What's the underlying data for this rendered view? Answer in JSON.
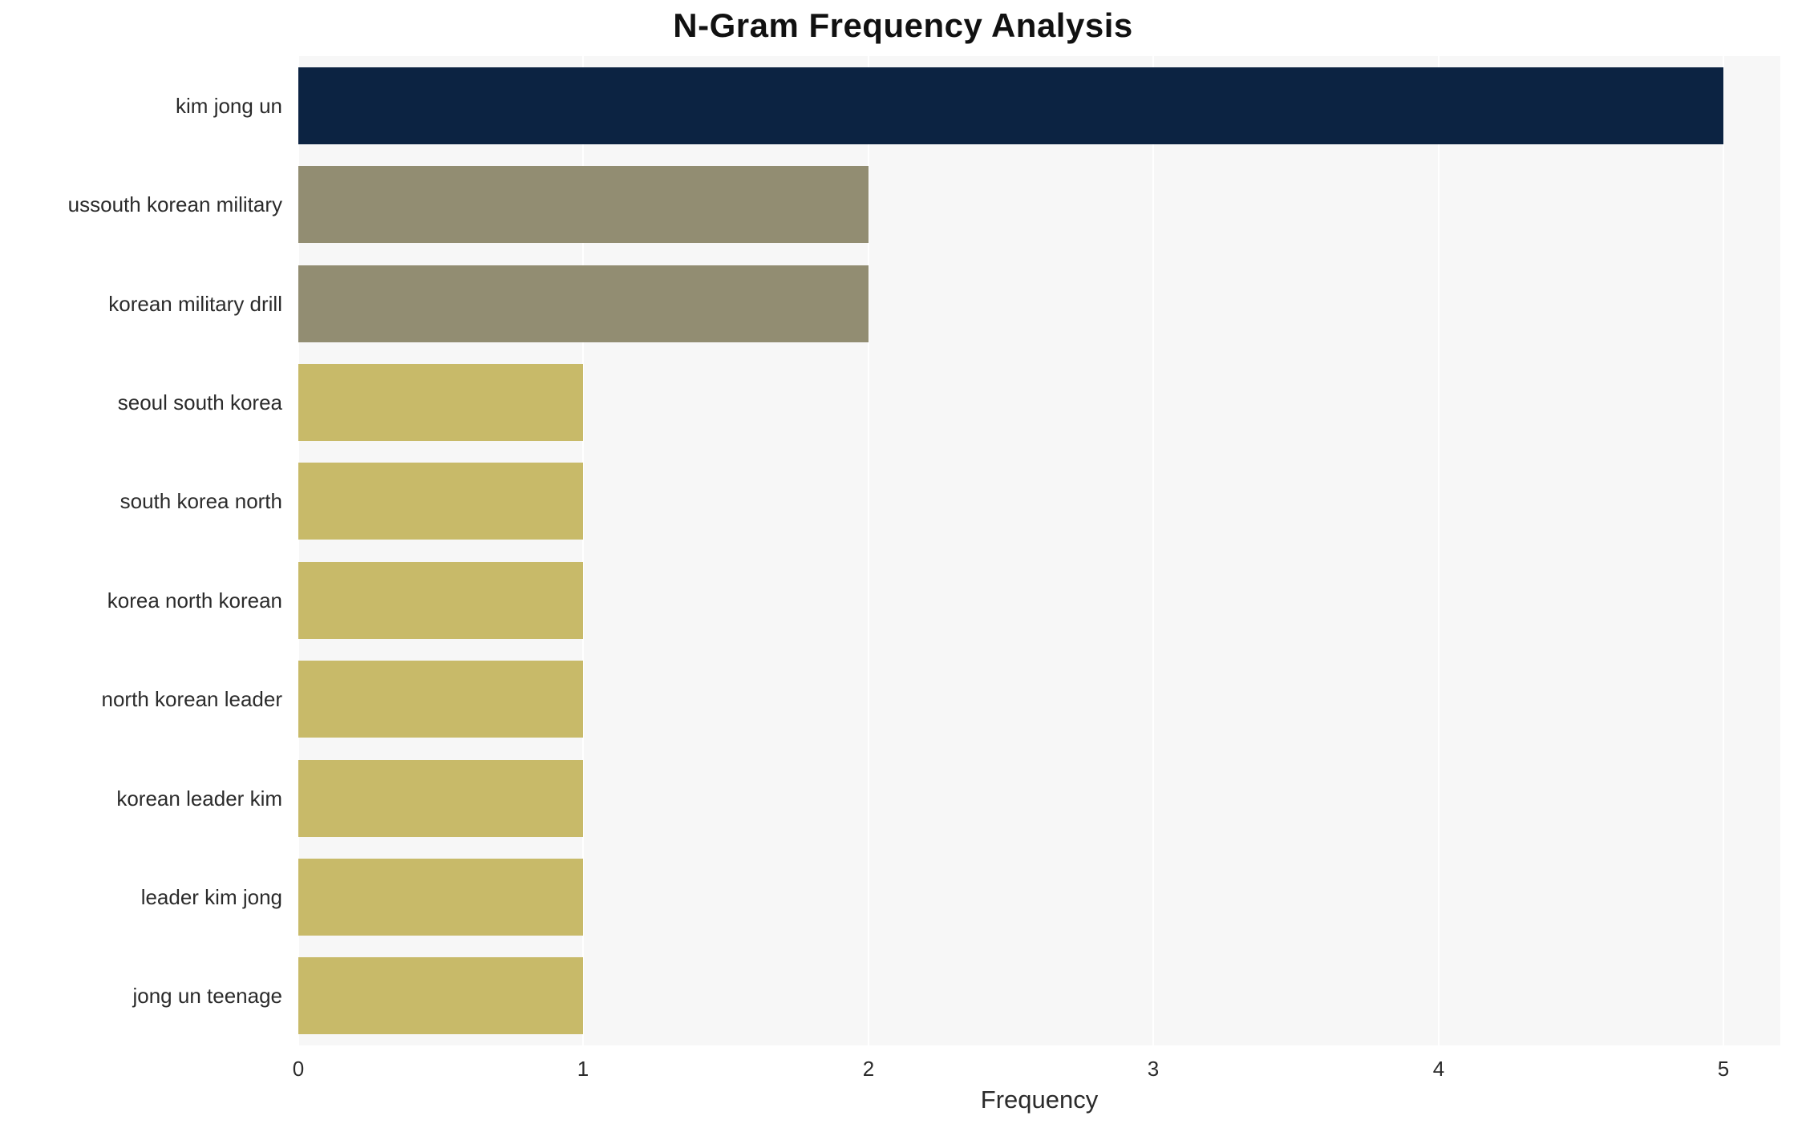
{
  "chart_data": {
    "type": "bar",
    "orientation": "horizontal",
    "title": "N-Gram Frequency Analysis",
    "xlabel": "Frequency",
    "ylabel": "",
    "categories": [
      "kim jong un",
      "ussouth korean military",
      "korean military drill",
      "seoul south korea",
      "south korea north",
      "korea north korean",
      "north korean leader",
      "korean leader kim",
      "leader kim jong",
      "jong un teenage"
    ],
    "values": [
      5,
      2,
      2,
      1,
      1,
      1,
      1,
      1,
      1,
      1
    ],
    "bar_colors": [
      "#0c2342",
      "#928d72",
      "#928d72",
      "#c8ba69",
      "#c8ba69",
      "#c8ba69",
      "#c8ba69",
      "#c8ba69",
      "#c8ba69",
      "#c8ba69"
    ],
    "xticks": [
      0,
      1,
      2,
      3,
      4,
      5
    ],
    "xlim": [
      0,
      5.2
    ],
    "grid": "vertical-white-on-lightgray",
    "plot_bg": "#f7f7f7",
    "legend": "none"
  }
}
